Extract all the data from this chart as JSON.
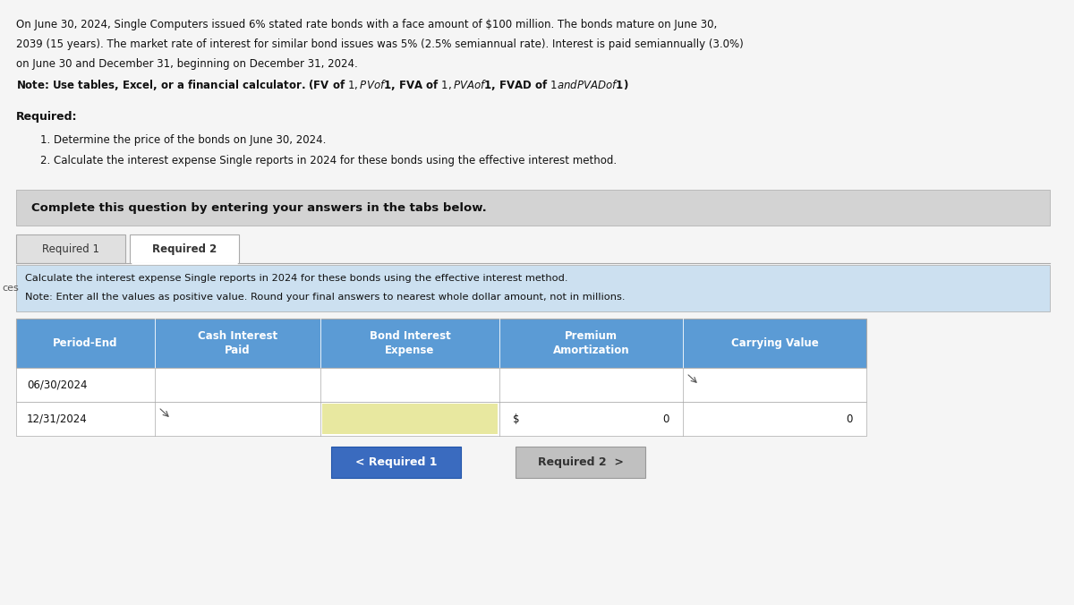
{
  "page_bg": "#f5f5f5",
  "header_lines": [
    "On June 30, 2024, Single Computers issued 6% stated rate bonds with a face amount of $100 million. The bonds mature on June 30,",
    "2039 (15 years). The market rate of interest for similar bond issues was 5% (2.5% semiannual rate). Interest is paid semiannually (3.0%)",
    "on June 30 and December 31, beginning on December 31, 2024.",
    "Note: Use tables, Excel, or a financial calculator. (FV of $1, PV of $1, FVA of $1, PVA of $1, FVAD of $1 and PVAD of $1)"
  ],
  "required_label": "Required:",
  "required_items": [
    "1. Determine the price of the bonds on June 30, 2024.",
    "2. Calculate the interest expense Single reports in 2024 for these bonds using the effective interest method."
  ],
  "complete_box_text": "Complete this question by entering your answers in the tabs below.",
  "complete_box_bg": "#d3d3d3",
  "tab1_label": "Required 1",
  "tab2_label": "Required 2",
  "tab_active_bg": "#ffffff",
  "tab_inactive_bg": "#e0e0e0",
  "tab_border": "#aaaaaa",
  "instruction_text_line1": "Calculate the interest expense Single reports in 2024 for these bonds using the effective interest method.",
  "instruction_text_line2": "Note: Enter all the values as positive value. Round your final answers to nearest whole dollar amount, not in millions.",
  "instruction_bg": "#cce0f0",
  "table_header_bg": "#5b9bd5",
  "table_header_text_color": "#ffffff",
  "table_row_bg": "#ffffff",
  "table_border_color": "#aaaaaa",
  "table_columns": [
    "Period-End",
    "Cash Interest\nPaid",
    "Bond Interest\nExpense",
    "Premium\nAmortization",
    "Carrying Value"
  ],
  "col_widths": [
    1.55,
    1.85,
    2.0,
    2.05,
    2.05
  ],
  "table_rows": [
    [
      "06/30/2024",
      "",
      "",
      "",
      ""
    ],
    [
      "12/31/2024",
      "",
      "",
      "",
      ""
    ]
  ],
  "row1_premium_dollar": "$",
  "row1_premium_value": "0",
  "row1_carrying_value": "0",
  "highlighted_cell_bg": "#e8e8a0",
  "btn1_label": "< Required 1",
  "btn1_bg": "#3a6bbf",
  "btn1_text_color": "#ffffff",
  "btn2_label": "Required 2  >",
  "btn2_bg": "#c0c0c0",
  "btn2_text_color": "#333333",
  "left_label": "ces"
}
